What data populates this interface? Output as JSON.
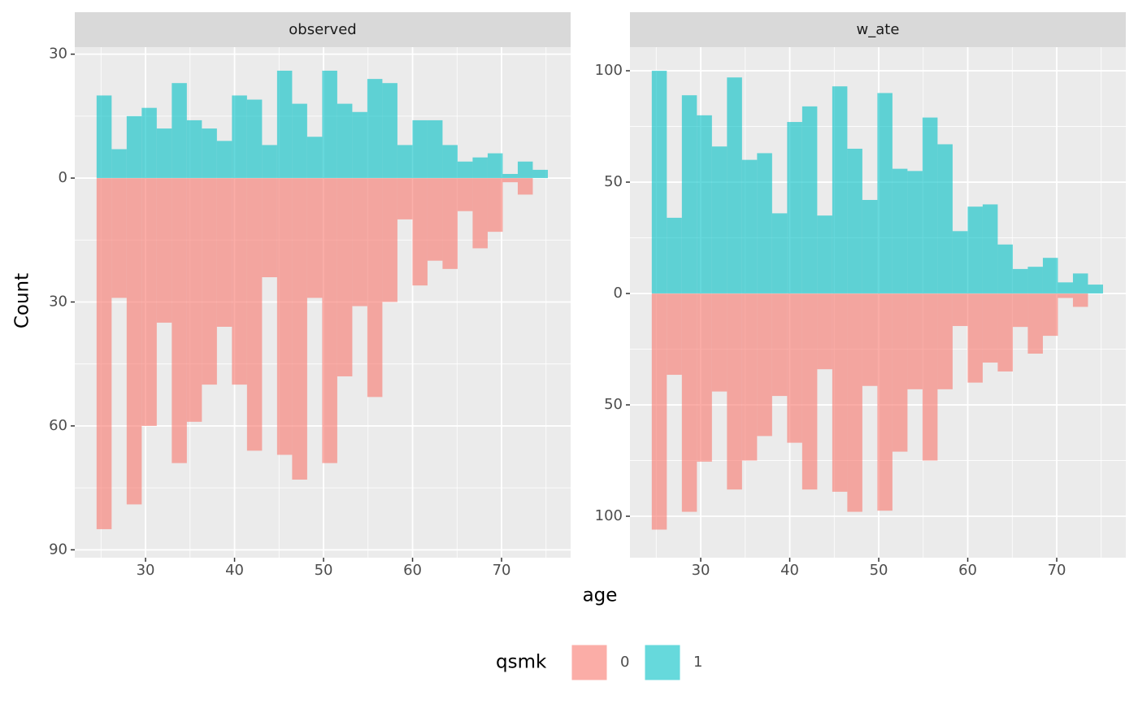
{
  "chart_data": {
    "type": "histogram",
    "xlabel": "age",
    "ylabel": "Count",
    "legend_title": "qsmk",
    "legend": "bottom",
    "grid": true,
    "xlim": [
      22.05,
      77.76
    ],
    "xticks": [
      30,
      40,
      50,
      60,
      70
    ],
    "xminor": [
      25,
      35,
      45,
      55,
      65,
      75
    ],
    "bins": [
      24.5,
      26.19,
      27.88,
      29.57,
      31.26,
      32.95,
      34.64,
      36.33,
      38.02,
      39.71,
      41.4,
      43.09,
      44.78,
      46.47,
      48.16,
      49.85,
      51.54,
      53.23,
      54.92,
      56.61,
      58.3,
      59.99,
      61.68,
      63.37,
      65.06,
      66.75,
      68.44,
      70.13,
      71.82,
      73.51,
      75.2
    ],
    "panels": [
      {
        "title": "observed",
        "ylim": [
          -91.9,
          31.7
        ],
        "yticks": [
          30,
          0,
          {
            "value": -30,
            "label": "30"
          },
          {
            "value": -60,
            "label": "60"
          },
          {
            "value": -90,
            "label": "90"
          }
        ],
        "yminor": [
          15,
          -15,
          -45,
          -75
        ],
        "series": [
          {
            "name": "0",
            "color": "#F8766D",
            "values": [
              -85,
              -29,
              -79,
              -60,
              -35,
              -69,
              -59,
              -50,
              -36,
              -50,
              -66,
              -24,
              -67,
              -73,
              -29,
              -69,
              -48,
              -31,
              -53,
              -30,
              -10,
              -26,
              -20,
              -22,
              -8,
              -17,
              -13,
              -1,
              -4,
              0
            ]
          },
          {
            "name": "1",
            "color": "#00BFC4",
            "values": [
              20,
              7,
              15,
              17,
              12,
              23,
              14,
              12,
              9,
              20,
              19,
              8,
              26,
              18,
              10,
              26,
              18,
              16,
              24,
              23,
              8,
              14,
              14,
              8,
              4,
              5,
              6,
              1,
              4,
              2
            ]
          }
        ]
      },
      {
        "title": "w_ate",
        "ylim": [
          -118.6,
          110.6
        ],
        "yticks": [
          100,
          50,
          0,
          {
            "value": -50,
            "label": "50"
          },
          {
            "value": -100,
            "label": "100"
          }
        ],
        "yminor": [
          75,
          25,
          -25,
          -75
        ],
        "series": [
          {
            "name": "0",
            "color": "#F8766D",
            "values": [
              -106,
              -36.5,
              -98,
              -75.5,
              -44,
              -88,
              -75,
              -64,
              -46,
              -67,
              -88,
              -34,
              -89,
              -98,
              -41.5,
              -97.5,
              -71,
              -43,
              -75,
              -43,
              -14.6,
              -40,
              -31,
              -35,
              -15,
              -27,
              -19,
              -2,
              -6,
              0
            ]
          },
          {
            "name": "1",
            "color": "#00BFC4",
            "values": [
              100,
              34,
              89,
              80,
              66,
              97,
              60,
              63,
              36,
              77,
              84,
              35,
              93,
              65,
              42,
              90,
              56,
              55,
              79,
              67,
              28,
              39,
              40,
              22,
              11,
              12,
              16,
              5,
              9,
              4
            ]
          }
        ]
      }
    ]
  }
}
